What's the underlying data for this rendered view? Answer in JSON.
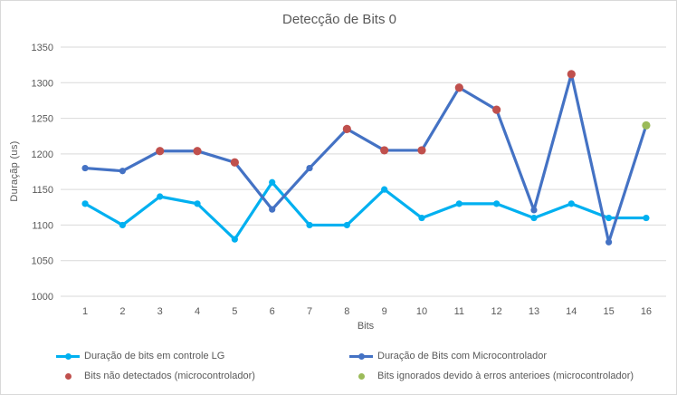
{
  "chart_data": {
    "type": "line",
    "title": "Detecção de Bits 0",
    "xlabel": "Bits",
    "ylabel": "Duraçãp (us)",
    "ylim": [
      1000,
      1350
    ],
    "y_tick_step": 50,
    "y_ticks": [
      1000,
      1050,
      1100,
      1150,
      1200,
      1250,
      1300,
      1350
    ],
    "grid": "horizontal",
    "legend_position": "bottom",
    "categories": [
      "1",
      "2",
      "3",
      "4",
      "5",
      "6",
      "7",
      "8",
      "9",
      "10",
      "11",
      "12",
      "13",
      "14",
      "15",
      "16"
    ],
    "series": [
      {
        "name": "Duração de bits em controle LG",
        "color": "#00B0F0",
        "marker": "circle",
        "values": [
          1130,
          1100,
          1140,
          1130,
          1080,
          1160,
          1100,
          1100,
          1150,
          1110,
          1130,
          1130,
          1110,
          1130,
          1110,
          1110
        ]
      },
      {
        "name": "Duração de Bits com Microcontrolador",
        "color": "#4472C4",
        "marker": "circle",
        "values": [
          1180,
          1176,
          1204,
          1204,
          1188,
          1122,
          1180,
          1235,
          1205,
          1205,
          1293,
          1262,
          1121,
          1312,
          1076,
          1240
        ]
      }
    ],
    "overlays": [
      {
        "name": "Bits não detectados (microcontrolador)",
        "color": "#C0504D",
        "on_series": 1,
        "bits": [
          3,
          4,
          5,
          8,
          9,
          10,
          11,
          12,
          14
        ]
      },
      {
        "name": "Bits ignorados devido à erros anterioes (microcontrolador)",
        "color": "#9BBB59",
        "on_series": 1,
        "bits": [
          16
        ]
      }
    ],
    "colors": {
      "grid": "#D9D9D9",
      "text": "#595959",
      "border": "#D9D9D9",
      "background": "#FFFFFF"
    }
  }
}
